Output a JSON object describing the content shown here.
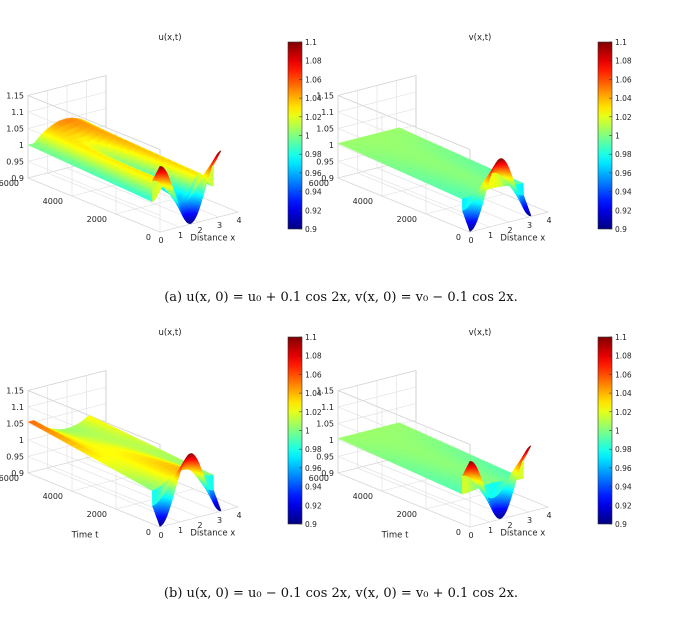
{
  "chart_data": [
    {
      "type": "surface3d",
      "title": "u(x,t)",
      "xlabel": "Distance x",
      "ylabel": "",
      "zlim": [
        0.9,
        1.15
      ],
      "clim": [
        0.9,
        1.1
      ],
      "x_ticks": [
        "0",
        "1",
        "2",
        "3",
        "4"
      ],
      "y_ticks": [
        "0",
        "2000",
        "4000",
        "6000"
      ],
      "z_ticks": [
        "0.9",
        "0.95",
        "1",
        "1.05",
        "1.1",
        "1.15"
      ],
      "colorbar_ticks": [
        "0.9",
        "0.92",
        "0.94",
        "0.96",
        "0.98",
        "1",
        "1.02",
        "1.04",
        "1.06",
        "1.08",
        "1.1"
      ],
      "initial_perturbation": 0.1,
      "initial_sign": 1,
      "late_time_profile": "peak"
    },
    {
      "type": "surface3d",
      "title": "v(x,t)",
      "xlabel": "Distance x",
      "ylabel": "",
      "zlim": [
        0.9,
        1.15
      ],
      "clim": [
        0.9,
        1.1
      ],
      "x_ticks": [
        "0",
        "1",
        "2",
        "3",
        "4"
      ],
      "y_ticks": [
        "0",
        "2000",
        "4000",
        "6000"
      ],
      "z_ticks": [
        "0.9",
        "0.95",
        "1",
        "1.05",
        "1.1",
        "1.15"
      ],
      "colorbar_ticks": [
        "0.9",
        "0.92",
        "0.94",
        "0.96",
        "0.98",
        "1",
        "1.02",
        "1.04",
        "1.06",
        "1.08",
        "1.1"
      ],
      "initial_perturbation": 0.1,
      "initial_sign": -1,
      "late_time_profile": "flat"
    },
    {
      "type": "surface3d",
      "title": "u(x,t)",
      "xlabel": "Distance x",
      "ylabel": "Time t",
      "zlim": [
        0.9,
        1.15
      ],
      "clim": [
        0.9,
        1.1
      ],
      "x_ticks": [
        "0",
        "1",
        "2",
        "3",
        "4"
      ],
      "y_ticks": [
        "0",
        "2000",
        "4000",
        "6000"
      ],
      "z_ticks": [
        "0.9",
        "0.95",
        "1",
        "1.05",
        "1.1",
        "1.15"
      ],
      "colorbar_ticks": [
        "0.9",
        "0.92",
        "0.94",
        "0.96",
        "0.98",
        "1",
        "1.02",
        "1.04",
        "1.06",
        "1.08",
        "1.1"
      ],
      "initial_perturbation": 0.1,
      "initial_sign": -1,
      "late_time_profile": "valley"
    },
    {
      "type": "surface3d",
      "title": "v(x,t)",
      "xlabel": "Distance x",
      "ylabel": "Time t",
      "zlim": [
        0.9,
        1.15
      ],
      "clim": [
        0.9,
        1.1
      ],
      "x_ticks": [
        "0",
        "1",
        "2",
        "3",
        "4"
      ],
      "y_ticks": [
        "0",
        "2000",
        "4000",
        "6000"
      ],
      "z_ticks": [
        "0.9",
        "0.95",
        "1",
        "1.05",
        "1.1",
        "1.15"
      ],
      "colorbar_ticks": [
        "0.9",
        "0.92",
        "0.94",
        "0.96",
        "0.98",
        "1",
        "1.02",
        "1.04",
        "1.06",
        "1.08",
        "1.1"
      ],
      "initial_perturbation": 0.1,
      "initial_sign": 1,
      "late_time_profile": "flat"
    }
  ],
  "captions": {
    "a": "(a) u(x, 0) = u₀ + 0.1 cos 2x, v(x, 0) = v₀ − 0.1 cos 2x.",
    "b": "(b) u(x, 0) = u₀ − 0.1 cos 2x, v(x, 0) = v₀ + 0.1 cos 2x."
  },
  "colormap": "jet"
}
